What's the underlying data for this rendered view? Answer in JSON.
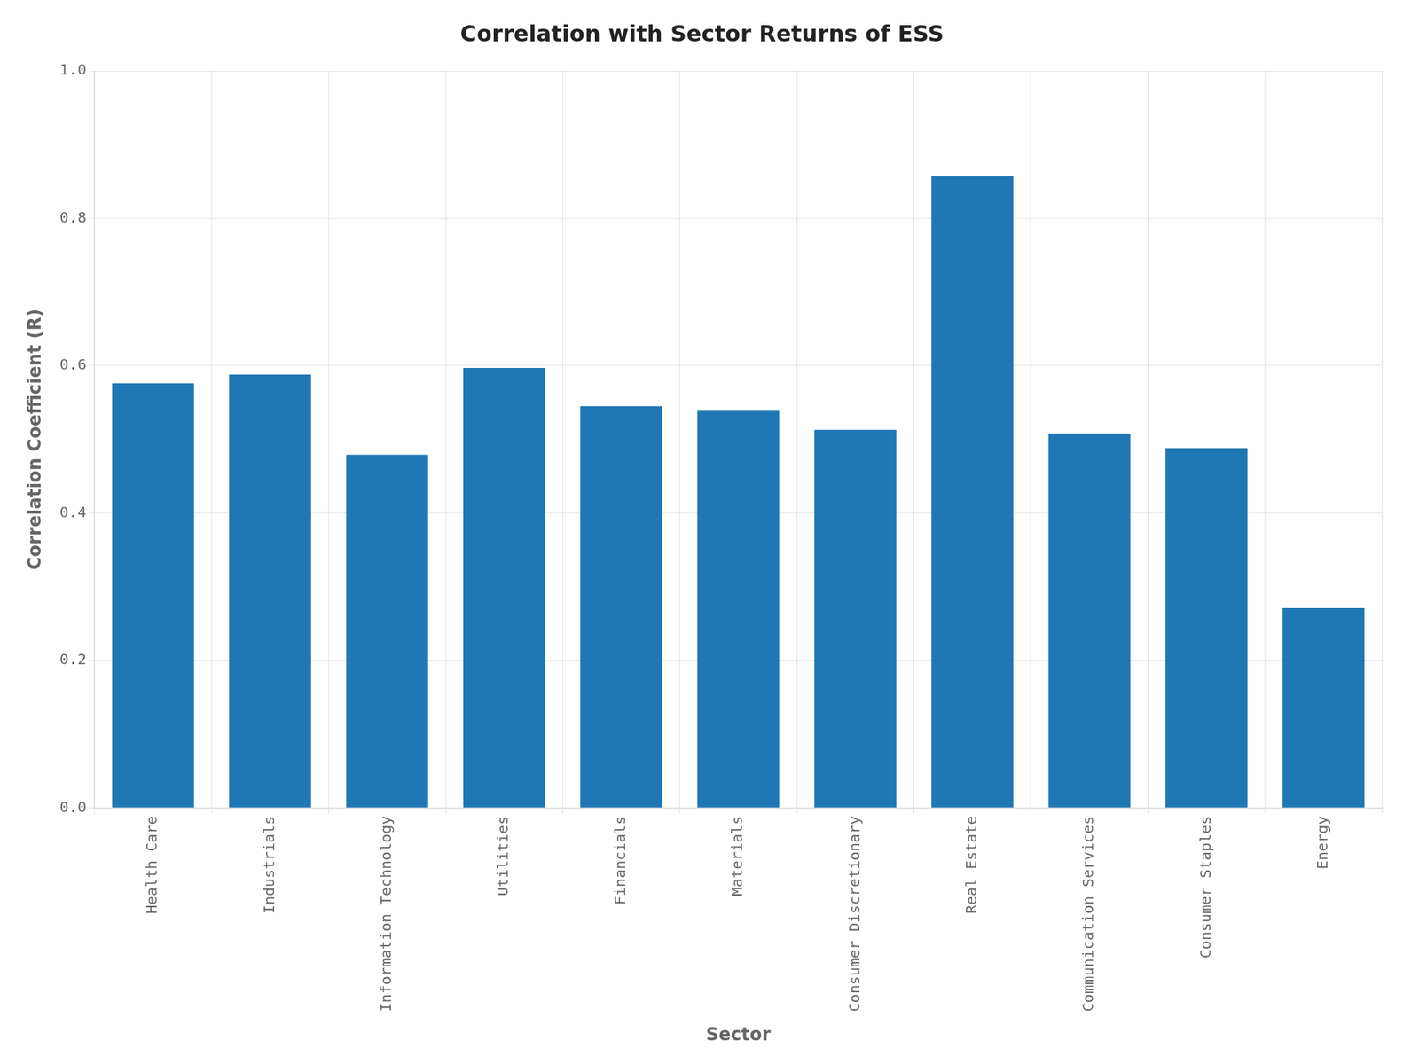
{
  "chart_data": {
    "type": "bar",
    "title": "Correlation with Sector Returns of ESS",
    "xlabel": "Sector",
    "ylabel": "Correlation Coefficient (R)",
    "categories": [
      "Health Care",
      "Industrials",
      "Information Technology",
      "Utilities",
      "Financials",
      "Materials",
      "Consumer Discretionary",
      "Real Estate",
      "Communication Services",
      "Consumer Staples",
      "Energy"
    ],
    "values": [
      0.576,
      0.588,
      0.479,
      0.597,
      0.545,
      0.54,
      0.513,
      0.857,
      0.508,
      0.488,
      0.271
    ],
    "color": "#1f77b4",
    "ylim": [
      0.0,
      1.0
    ],
    "yticks": [
      {
        "value": 0,
        "label": "0.0"
      },
      0.2,
      0.4,
      0.6,
      0.8,
      {
        "value": 1,
        "label": "1.0"
      }
    ],
    "grid": true
  }
}
